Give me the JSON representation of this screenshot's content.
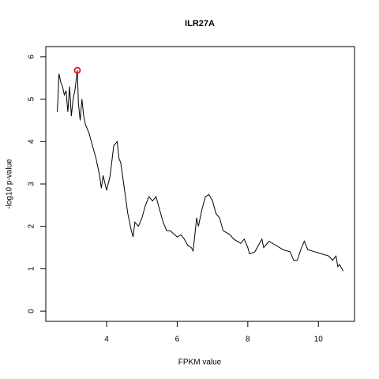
{
  "chart_data": {
    "type": "line",
    "title": "ILR27A",
    "xlabel": "FPKM value",
    "ylabel": "-log10 p-value",
    "x": [
      2.6,
      2.62,
      2.65,
      2.7,
      2.75,
      2.8,
      2.85,
      2.9,
      2.95,
      3.0,
      3.05,
      3.1,
      3.17,
      3.2,
      3.25,
      3.3,
      3.35,
      3.4,
      3.5,
      3.6,
      3.7,
      3.8,
      3.85,
      3.9,
      4.0,
      4.1,
      4.2,
      4.3,
      4.35,
      4.4,
      4.5,
      4.6,
      4.7,
      4.75,
      4.8,
      4.9,
      5.0,
      5.1,
      5.2,
      5.3,
      5.4,
      5.5,
      5.6,
      5.7,
      5.8,
      6.0,
      6.1,
      6.2,
      6.3,
      6.4,
      6.45,
      6.5,
      6.55,
      6.6,
      6.7,
      6.8,
      6.9,
      7.0,
      7.1,
      7.2,
      7.3,
      7.5,
      7.6,
      7.8,
      7.9,
      8.0,
      8.05,
      8.2,
      8.4,
      8.45,
      8.6,
      8.8,
      9.0,
      9.2,
      9.3,
      9.4,
      9.5,
      9.6,
      9.7,
      9.9,
      10.1,
      10.3,
      10.4,
      10.5,
      10.55,
      10.6,
      10.7
    ],
    "values": [
      4.7,
      5.0,
      5.6,
      5.4,
      5.3,
      5.1,
      5.2,
      4.7,
      5.3,
      4.6,
      5.0,
      5.2,
      5.68,
      4.9,
      4.5,
      5.0,
      4.6,
      4.4,
      4.2,
      3.9,
      3.6,
      3.2,
      2.9,
      3.2,
      2.85,
      3.2,
      3.9,
      4.0,
      3.6,
      3.5,
      2.9,
      2.3,
      1.9,
      1.75,
      2.1,
      2.0,
      2.2,
      2.5,
      2.7,
      2.6,
      2.7,
      2.4,
      2.1,
      1.9,
      1.9,
      1.75,
      1.8,
      1.7,
      1.55,
      1.5,
      1.42,
      1.8,
      2.2,
      2.0,
      2.4,
      2.7,
      2.75,
      2.6,
      2.3,
      2.2,
      1.9,
      1.8,
      1.7,
      1.6,
      1.7,
      1.5,
      1.35,
      1.4,
      1.7,
      1.5,
      1.65,
      1.55,
      1.45,
      1.4,
      1.2,
      1.2,
      1.45,
      1.65,
      1.45,
      1.4,
      1.35,
      1.3,
      1.2,
      1.3,
      1.05,
      1.1,
      0.95
    ],
    "color": "#000000",
    "highlight": {
      "x": 3.17,
      "y": 5.68,
      "color": "#e41a1c"
    },
    "xlim": [
      2.276,
      11.024
    ],
    "xticks": [
      4,
      6,
      8,
      10
    ],
    "ylim": [
      -0.24,
      6.24
    ],
    "yticks": [
      0,
      1,
      2,
      3,
      4,
      5,
      6
    ],
    "grid": false
  }
}
